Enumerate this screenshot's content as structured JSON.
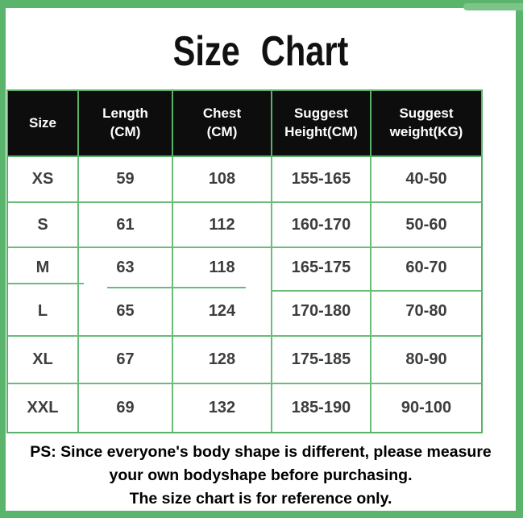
{
  "title": "Size Chart",
  "table": {
    "headers": [
      "Size",
      "Length\n(CM)",
      "Chest\n(CM)",
      "Suggest\nHeight(CM)",
      "Suggest\nweight(KG)"
    ],
    "rows": [
      [
        "XS",
        "59",
        "108",
        "155-165",
        "40-50"
      ],
      [
        "S",
        "61",
        "112",
        "160-170",
        "50-60"
      ],
      [
        "M",
        "63",
        "118",
        "165-175",
        "60-70"
      ],
      [
        "L",
        "65",
        "124",
        "170-180",
        "70-80"
      ],
      [
        "XL",
        "67",
        "128",
        "175-185",
        "80-90"
      ],
      [
        "XXL",
        "69",
        "132",
        "185-190",
        "90-100"
      ]
    ]
  },
  "note": {
    "lines": [
      "PS: Since everyone's body shape is different, please measure",
      "your own bodyshape before purchasing.",
      "The size chart is for reference only."
    ]
  },
  "colors": {
    "frame_green": "#5bb46c",
    "corner_tab_green": "#7cc489",
    "table_border_green": "#58b369",
    "table_line_green": "#6abd78",
    "header_bg": "#0d0d0d",
    "header_text": "#ffffff",
    "cell_text": "#3d3d3d",
    "note_text": "#000000"
  }
}
